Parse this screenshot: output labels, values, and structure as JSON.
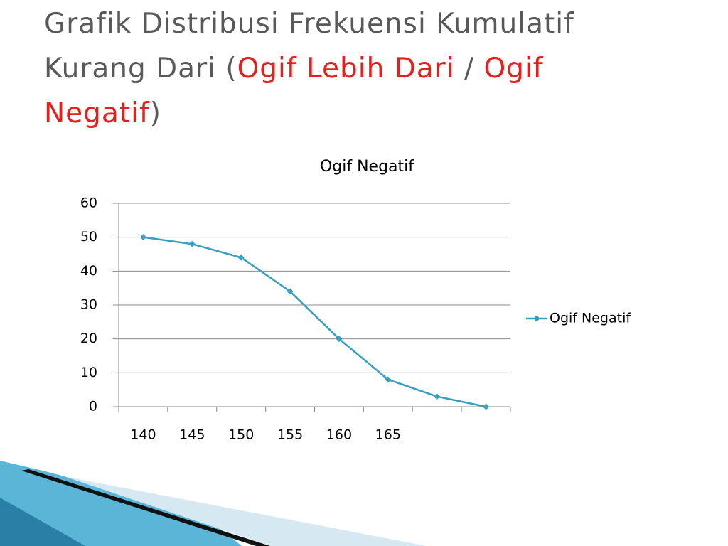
{
  "slide": {
    "title_parts": [
      {
        "text": "Grafik Distribusi Frekuensi Kumulatif Kurang Dari (",
        "color": "#595959"
      },
      {
        "text": "Ogif Lebih Dari",
        "color": "#e3201b"
      },
      {
        "text": " / ",
        "color": "#595959"
      },
      {
        "text": "Ogif Negatif",
        "color": "#e3201b"
      },
      {
        "text": ")",
        "color": "#595959"
      }
    ]
  },
  "chart_data": {
    "type": "line",
    "title": "Ogif Negatif",
    "categories": [
      "140",
      "145",
      "150",
      "155",
      "160",
      "165",
      null,
      null
    ],
    "series": [
      {
        "name": "Ogif Negatif",
        "color": "#35a0c0",
        "values": [
          50,
          48,
          44,
          34,
          20,
          8,
          3,
          0
        ]
      }
    ],
    "ylim": [
      0,
      60
    ],
    "yticks": [
      0,
      10,
      20,
      30,
      40,
      50,
      60
    ],
    "grid": true,
    "legend": "right"
  }
}
